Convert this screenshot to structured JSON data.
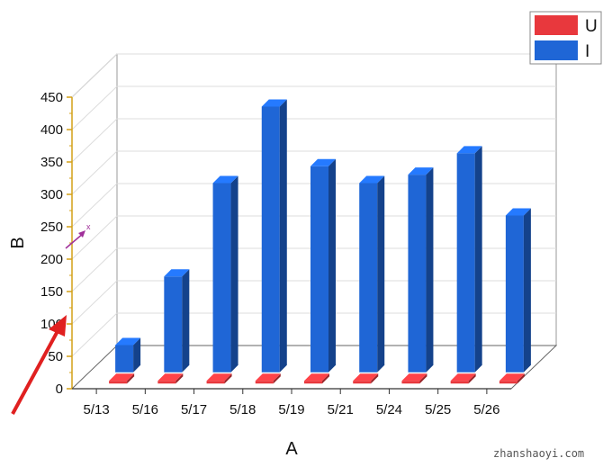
{
  "chart_data": {
    "type": "bar",
    "style": "3d",
    "categories": [
      "5/13",
      "5/16",
      "5/17",
      "5/18",
      "5/19",
      "5/21",
      "5/24",
      "5/25",
      "5/26"
    ],
    "series": [
      {
        "name": "U",
        "values": [
          0,
          0,
          0,
          0,
          0,
          0,
          0,
          0,
          0
        ],
        "color": "#e8383d"
      },
      {
        "name": "I",
        "values": [
          42,
          148,
          292,
          410,
          318,
          292,
          305,
          338,
          242
        ],
        "color": "#1f66d6"
      }
    ],
    "xlabel": "A",
    "ylabel": "B",
    "ylim": [
      0,
      450
    ],
    "yticks": [
      0,
      50,
      100,
      150,
      200,
      250,
      300,
      350,
      400,
      450
    ],
    "grid": true,
    "legend_position": "top-right"
  },
  "annotations": {
    "marker_symbol": "x"
  },
  "watermark": "zhanshaoyi.com",
  "colors": {
    "axis_color": "#d4a017",
    "arrow_color": "#e02020",
    "marker_color": "#a0309a"
  }
}
